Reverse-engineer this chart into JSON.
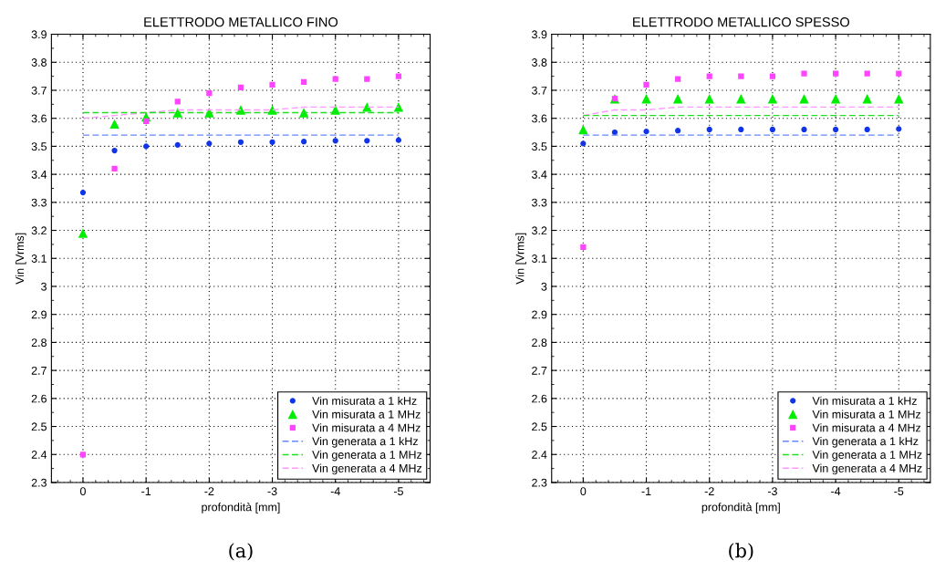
{
  "chart_data": [
    {
      "type": "scatter",
      "title": "ELETTRODO METALLICO FINO",
      "xlabel": "profondità [mm]",
      "ylabel": "Vin [Vrms]",
      "annotations": [
        "(a)"
      ],
      "x": [
        0,
        -0.5,
        -1,
        -1.5,
        -2,
        -2.5,
        -3,
        -3.5,
        -4,
        -4.5,
        -5
      ],
      "xlim": [
        0.5,
        -5.5
      ],
      "xticks": [
        0,
        -1,
        -2,
        -3,
        -4,
        -5
      ],
      "ylim": [
        2.3,
        3.9
      ],
      "yticks": [
        2.3,
        2.4,
        2.5,
        2.6,
        2.7,
        2.8,
        2.9,
        3,
        3.1,
        3.2,
        3.3,
        3.4,
        3.5,
        3.6,
        3.7,
        3.8,
        3.9
      ],
      "grid": true,
      "legend": "bottom right",
      "series": [
        {
          "name": "Vin misurata a 1 kHz",
          "marker": "circle",
          "color": "#1034e8",
          "values": [
            3.335,
            3.485,
            3.5,
            3.505,
            3.51,
            3.515,
            3.515,
            3.517,
            3.52,
            3.52,
            3.522
          ]
        },
        {
          "name": "Vin misurata a 1 MHz",
          "marker": "triangle",
          "color": "#00ee00",
          "values": [
            3.19,
            3.58,
            3.605,
            3.62,
            3.62,
            3.63,
            3.63,
            3.62,
            3.63,
            3.64,
            3.64
          ]
        },
        {
          "name": "Vin misurata a 4 MHz",
          "marker": "square",
          "color": "#ff44ff",
          "values": [
            2.4,
            3.42,
            3.59,
            3.66,
            3.69,
            3.71,
            3.72,
            3.73,
            3.74,
            3.74,
            3.75
          ]
        },
        {
          "name": "Vin generata a 1 kHz",
          "type": "line",
          "line_style": "dashed",
          "color": "#6688ff",
          "values": [
            3.54,
            3.54,
            3.54,
            3.54,
            3.54,
            3.54,
            3.54,
            3.54,
            3.54,
            3.54,
            3.54
          ]
        },
        {
          "name": "Vin generata a 1 MHz",
          "type": "line",
          "line_style": "dashed",
          "color": "#22dd22",
          "values": [
            3.62,
            3.62,
            3.62,
            3.62,
            3.62,
            3.62,
            3.62,
            3.62,
            3.62,
            3.62,
            3.62
          ]
        },
        {
          "name": "Vin generata a 4 MHz",
          "type": "line",
          "line_style": "dashed",
          "color": "#ff99ff",
          "values": [
            3.6,
            3.61,
            3.62,
            3.63,
            3.63,
            3.63,
            3.63,
            3.64,
            3.64,
            3.64,
            3.64
          ]
        }
      ]
    },
    {
      "type": "scatter",
      "title": "ELETTRODO METALLICO SPESSO",
      "xlabel": "profondità [mm]",
      "ylabel": "Vin [Vrms]",
      "annotations": [
        "(b)"
      ],
      "x": [
        0,
        -0.5,
        -1,
        -1.5,
        -2,
        -2.5,
        -3,
        -3.5,
        -4,
        -4.5,
        -5
      ],
      "xlim": [
        0.5,
        -5.5
      ],
      "xticks": [
        0,
        -1,
        -2,
        -3,
        -4,
        -5
      ],
      "ylim": [
        2.3,
        3.9
      ],
      "yticks": [
        2.3,
        2.4,
        2.5,
        2.6,
        2.7,
        2.8,
        2.9,
        3,
        3.1,
        3.2,
        3.3,
        3.4,
        3.5,
        3.6,
        3.7,
        3.8,
        3.9
      ],
      "grid": true,
      "legend": "bottom right",
      "series": [
        {
          "name": "Vin misurata a 1 kHz",
          "marker": "circle",
          "color": "#1034e8",
          "values": [
            3.51,
            3.55,
            3.553,
            3.556,
            3.56,
            3.56,
            3.56,
            3.56,
            3.56,
            3.56,
            3.562
          ]
        },
        {
          "name": "Vin misurata a 1 MHz",
          "marker": "triangle",
          "color": "#00ee00",
          "values": [
            3.56,
            3.67,
            3.67,
            3.67,
            3.67,
            3.67,
            3.67,
            3.67,
            3.67,
            3.67,
            3.67
          ]
        },
        {
          "name": "Vin misurata a 4 MHz",
          "marker": "square",
          "color": "#ff44ff",
          "values": [
            3.14,
            3.67,
            3.72,
            3.74,
            3.75,
            3.75,
            3.75,
            3.76,
            3.76,
            3.76,
            3.76
          ]
        },
        {
          "name": "Vin generata a 1 kHz",
          "type": "line",
          "line_style": "dashed",
          "color": "#6688ff",
          "values": [
            3.54,
            3.54,
            3.54,
            3.54,
            3.54,
            3.54,
            3.54,
            3.54,
            3.54,
            3.54,
            3.54
          ]
        },
        {
          "name": "Vin generata a 1 MHz",
          "type": "line",
          "line_style": "dashed",
          "color": "#22dd22",
          "values": [
            3.61,
            3.61,
            3.61,
            3.61,
            3.61,
            3.61,
            3.61,
            3.61,
            3.61,
            3.61,
            3.61
          ]
        },
        {
          "name": "Vin generata a 4 MHz",
          "type": "line",
          "line_style": "dashed",
          "color": "#ff99ff",
          "values": [
            3.61,
            3.63,
            3.63,
            3.64,
            3.64,
            3.64,
            3.64,
            3.64,
            3.64,
            3.64,
            3.64
          ]
        }
      ]
    }
  ]
}
